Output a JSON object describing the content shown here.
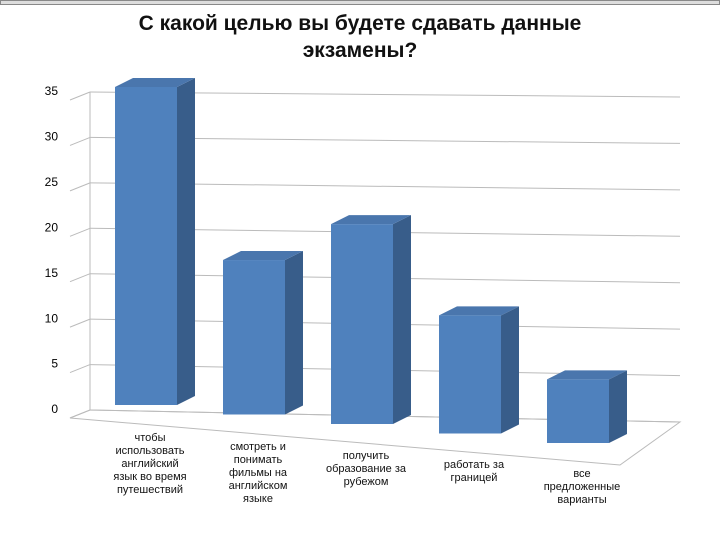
{
  "chart_data": {
    "type": "bar3d",
    "title": "С какой целью вы будете сдавать данные\nэкзамены?",
    "categories": [
      "чтобы\nиспользовать\nанглийский\nязык во время\nпутешествий",
      "смотреть и\nпонимать\nфильмы на\nанглийском\nязыке",
      "получить\nобразование за\nрубежом",
      "работать за\nграницей",
      "все\nпредложенные\nварианты"
    ],
    "values": [
      35,
      17,
      22,
      13,
      7
    ],
    "color": "#4f81bd",
    "ylim": [
      0,
      35
    ],
    "yticks": [
      0,
      5,
      10,
      15,
      20,
      25,
      30,
      35
    ],
    "grid": true
  }
}
